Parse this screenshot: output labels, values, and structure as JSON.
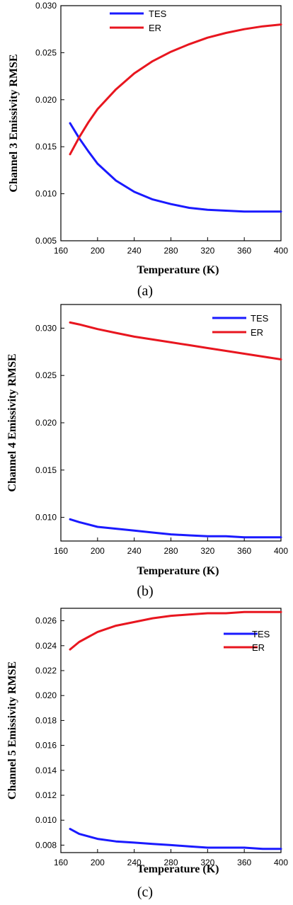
{
  "chart_data": [
    {
      "type": "line",
      "xlabel": "Temperature (K)",
      "ylabel": "Channel 3 Emissivity RMSE",
      "panel_label": "(a)",
      "xlim": [
        160,
        400
      ],
      "ylim": [
        0.005,
        0.03
      ],
      "xticks": [
        "160",
        "200",
        "240",
        "280",
        "320",
        "360",
        "400"
      ],
      "yticks": [
        "0.005",
        "0.010",
        "0.015",
        "0.020",
        "0.025",
        "0.030"
      ],
      "legend_position": "top-center",
      "series": [
        {
          "name": "TES",
          "color": "#1a1aff",
          "x": [
            170,
            180,
            190,
            200,
            220,
            240,
            260,
            280,
            300,
            320,
            340,
            360,
            380,
            400
          ],
          "y": [
            0.0175,
            0.0159,
            0.0145,
            0.0132,
            0.0114,
            0.0102,
            0.0094,
            0.0089,
            0.0085,
            0.0083,
            0.0082,
            0.0081,
            0.0081,
            0.0081
          ]
        },
        {
          "name": "ER",
          "color": "#e8161f",
          "x": [
            170,
            180,
            190,
            200,
            220,
            240,
            260,
            280,
            300,
            320,
            340,
            360,
            380,
            400
          ],
          "y": [
            0.0142,
            0.016,
            0.0176,
            0.019,
            0.0211,
            0.0228,
            0.0241,
            0.0251,
            0.0259,
            0.0266,
            0.0271,
            0.0275,
            0.0278,
            0.028
          ]
        }
      ]
    },
    {
      "type": "line",
      "xlabel": "Temperature (K)",
      "ylabel": "Channel 4 Emissivity RMSE",
      "panel_label": "(b)",
      "xlim": [
        160,
        400
      ],
      "ylim": [
        0.0075,
        0.0325
      ],
      "xticks": [
        "160",
        "200",
        "240",
        "280",
        "320",
        "360",
        "400"
      ],
      "yticks": [
        "0.010",
        "0.015",
        "0.020",
        "0.025",
        "0.030"
      ],
      "legend_position": "top-right",
      "series": [
        {
          "name": "TES",
          "color": "#1a1aff",
          "x": [
            170,
            180,
            200,
            220,
            240,
            260,
            280,
            300,
            320,
            340,
            360,
            380,
            400
          ],
          "y": [
            0.0098,
            0.0095,
            0.009,
            0.0088,
            0.0086,
            0.0084,
            0.0082,
            0.0081,
            0.008,
            0.008,
            0.0079,
            0.0079,
            0.0079
          ]
        },
        {
          "name": "ER",
          "color": "#e8161f",
          "x": [
            170,
            180,
            200,
            220,
            240,
            260,
            280,
            300,
            320,
            340,
            360,
            380,
            400
          ],
          "y": [
            0.0306,
            0.0304,
            0.0299,
            0.0295,
            0.0291,
            0.0288,
            0.0285,
            0.0282,
            0.0279,
            0.0276,
            0.0273,
            0.027,
            0.0267
          ]
        }
      ]
    },
    {
      "type": "line",
      "xlabel": "Temperature (K)",
      "ylabel": "Channel 5 Emissivity RMSE",
      "panel_label": "(c)",
      "xlim": [
        160,
        400
      ],
      "ylim": [
        0.0074,
        0.027
      ],
      "xticks": [
        "160",
        "200",
        "240",
        "280",
        "320",
        "360",
        "400"
      ],
      "yticks": [
        "0.008",
        "0.010",
        "0.012",
        "0.014",
        "0.016",
        "0.018",
        "0.020",
        "0.022",
        "0.024",
        "0.026"
      ],
      "legend_position": "top-right",
      "series": [
        {
          "name": "TES",
          "color": "#1a1aff",
          "x": [
            170,
            180,
            200,
            220,
            240,
            260,
            280,
            300,
            320,
            340,
            360,
            380,
            400
          ],
          "y": [
            0.0093,
            0.0089,
            0.0085,
            0.0083,
            0.0082,
            0.0081,
            0.008,
            0.0079,
            0.0078,
            0.0078,
            0.0078,
            0.0077,
            0.0077
          ]
        },
        {
          "name": "ER",
          "color": "#e8161f",
          "x": [
            170,
            180,
            200,
            220,
            240,
            260,
            280,
            300,
            320,
            340,
            360,
            380,
            400
          ],
          "y": [
            0.0237,
            0.0243,
            0.0251,
            0.0256,
            0.0259,
            0.0262,
            0.0264,
            0.0265,
            0.0266,
            0.0266,
            0.0267,
            0.0267,
            0.0267
          ]
        }
      ]
    }
  ]
}
